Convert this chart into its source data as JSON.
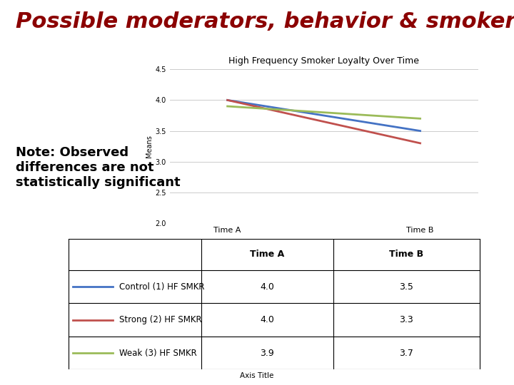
{
  "title": "Possible moderators, behavior & smoker frequency",
  "chart_title": "High Frequency Smoker Loyalty Over Time",
  "xlabel": "Axis Title",
  "ylabel": "Means",
  "note": "Note: Observed\ndifferences are not\nstatistically significant",
  "series": [
    {
      "label": "Control (1) HF SMKR",
      "color": "#4472C4",
      "time_a": 4.0,
      "time_b": 3.5
    },
    {
      "label": "Strong (2) HF SMKR",
      "color": "#C0504D",
      "time_a": 4.0,
      "time_b": 3.3
    },
    {
      "label": "Weak (3) HF SMKR",
      "color": "#9BBB59",
      "time_a": 3.9,
      "time_b": 3.7
    }
  ],
  "x_labels": [
    "Time A",
    "Time B"
  ],
  "ylim": [
    2.0,
    4.5
  ],
  "yticks": [
    2.0,
    2.5,
    3.0,
    3.5,
    4.0,
    4.5
  ],
  "background_color": "#FFFFFF",
  "plot_bg_color": "#FFFFFF",
  "title_color": "#8B0000",
  "aut_box_color": "#222222",
  "aut_text_color": "#FFFFFF",
  "line_colors_for_table": [
    "#4472C4",
    "#C0504D",
    "#9BBB59"
  ],
  "grid_color": "#CCCCCC",
  "title_fontsize": 22,
  "chart_title_fontsize": 9,
  "note_fontsize": 13,
  "table_rows": [
    [
      "Control (1) HF SMKR",
      "4.0",
      "3.5"
    ],
    [
      "Strong (2) HF SMKR",
      "4.0",
      "3.3"
    ],
    [
      "Weak (3) HF SMKR",
      "3.9",
      "3.7"
    ]
  ]
}
